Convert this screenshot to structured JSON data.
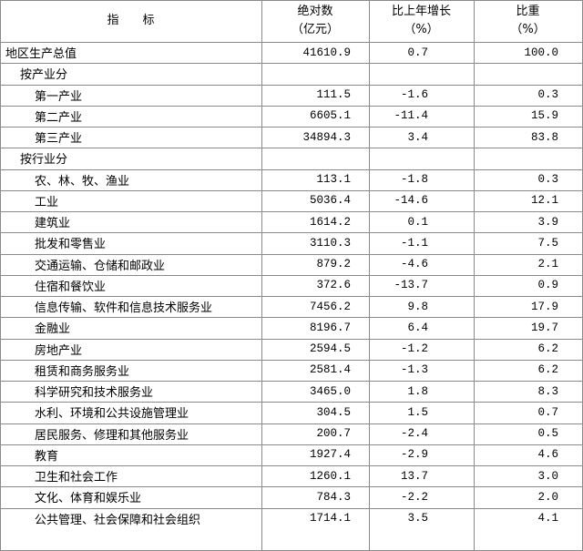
{
  "header": {
    "indicator": "指　　标",
    "absolute": [
      "绝对数",
      "（亿元）"
    ],
    "growth": [
      "比上年增长",
      "（%）"
    ],
    "share": [
      "比重",
      "（%）"
    ]
  },
  "table": {
    "total": [
      "地区生产总值",
      "41610.9",
      "0.7",
      "100.0"
    ],
    "groups": [
      {
        "title": "按产业分",
        "rows": [
          [
            "第一产业",
            "111.5",
            "-1.6",
            "0.3"
          ],
          [
            "第二产业",
            "6605.1",
            "-11.4",
            "15.9"
          ],
          [
            "第三产业",
            "34894.3",
            "3.4",
            "83.8"
          ]
        ]
      },
      {
        "title": "按行业分",
        "rows": [
          [
            "农、林、牧、渔业",
            "113.1",
            "-1.8",
            "0.3"
          ],
          [
            "工业",
            "5036.4",
            "-14.6",
            "12.1"
          ],
          [
            "建筑业",
            "1614.2",
            "0.1",
            "3.9"
          ],
          [
            "批发和零售业",
            "3110.3",
            "-1.1",
            "7.5"
          ],
          [
            "交通运输、仓储和邮政业",
            "879.2",
            "-4.6",
            "2.1"
          ],
          [
            "住宿和餐饮业",
            "372.6",
            "-13.7",
            "0.9"
          ],
          [
            "信息传输、软件和信息技术服务业",
            "7456.2",
            "9.8",
            "17.9"
          ],
          [
            "金融业",
            "8196.7",
            "6.4",
            "19.7"
          ],
          [
            "房地产业",
            "2594.5",
            "-1.2",
            "6.2"
          ],
          [
            "租赁和商务服务业",
            "2581.4",
            "-1.3",
            "6.2"
          ],
          [
            "科学研究和技术服务业",
            "3465.0",
            "1.8",
            "8.3"
          ],
          [
            "水利、环境和公共设施管理业",
            "304.5",
            "1.5",
            "0.7"
          ],
          [
            "居民服务、修理和其他服务业",
            "200.7",
            "-2.4",
            "0.5"
          ],
          [
            "教育",
            "1927.4",
            "-2.9",
            "4.6"
          ],
          [
            "卫生和社会工作",
            "1260.1",
            "13.7",
            "3.0"
          ],
          [
            "文化、体育和娱乐业",
            "784.3",
            "-2.2",
            "2.0"
          ],
          [
            "公共管理、社会保障和社会组织",
            "1714.1",
            "3.5",
            "4.1"
          ]
        ]
      }
    ]
  }
}
